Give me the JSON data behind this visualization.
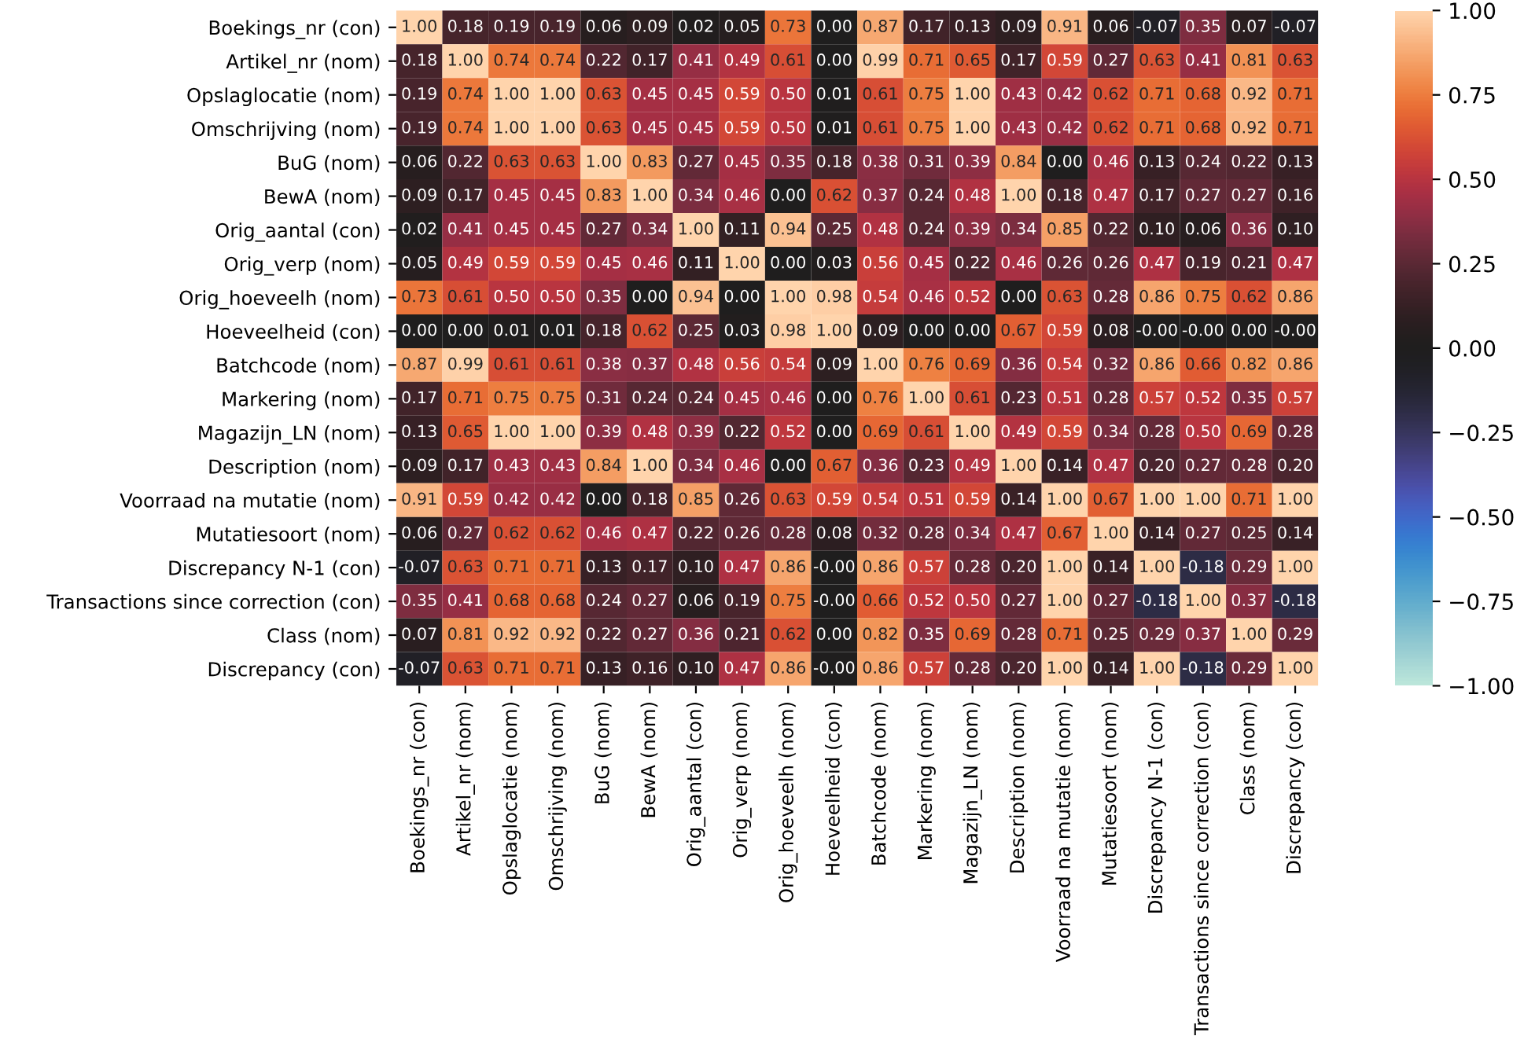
{
  "chart_data": {
    "type": "heatmap",
    "categories": [
      "Boekings_nr (con)",
      "Artikel_nr (nom)",
      "Opslaglocatie (nom)",
      "Omschrijving (nom)",
      "BuG (nom)",
      "BewA (nom)",
      "Orig_aantal (con)",
      "Orig_verp (nom)",
      "Orig_hoeveelh (nom)",
      "Hoeveelheid (con)",
      "Batchcode (nom)",
      "Markering (nom)",
      "Magazijn_LN (nom)",
      "Description (nom)",
      "Voorraad na mutatie (nom)",
      "Mutatiesoort (nom)",
      "Discrepancy N-1 (con)",
      "Transactions since correction (con)",
      "Class (nom)",
      "Discrepancy (con)"
    ],
    "y_categories": [
      "Boekings_nr (con)",
      "Artikel_nr (nom)",
      "Opslaglocatie (nom)",
      "Omschrijving (nom)",
      "BuG (nom)",
      "BewA (nom)",
      "Orig_aantal (con)",
      "Orig_verp (nom)",
      "Orig_hoeveelh (nom)",
      "Hoeveelheid (con)",
      "Batchcode (nom)",
      "Markering (nom)",
      "Magazijn_LN (nom)",
      "Description (nom)",
      "Voorraad na mutatie (nom)",
      "Mutatiesoort (nom)",
      "Discrepancy N-1 (con)",
      "Transactions since correction (con)",
      "Class (nom)",
      "Discrepancy (con)"
    ],
    "cells": [
      [
        1.0,
        0.18,
        0.19,
        0.19,
        0.06,
        0.09,
        0.02,
        0.05,
        0.73,
        0.0,
        0.87,
        0.17,
        0.13,
        0.09,
        0.91,
        0.06,
        -0.07,
        0.35,
        0.07,
        -0.07
      ],
      [
        0.18,
        1.0,
        0.74,
        0.74,
        0.22,
        0.17,
        0.41,
        0.49,
        0.61,
        0.0,
        0.99,
        0.71,
        0.65,
        0.17,
        0.59,
        0.27,
        0.63,
        0.41,
        0.81,
        0.63
      ],
      [
        0.19,
        0.74,
        1.0,
        1.0,
        0.63,
        0.45,
        0.45,
        0.59,
        0.5,
        0.01,
        0.61,
        0.75,
        1.0,
        0.43,
        0.42,
        0.62,
        0.71,
        0.68,
        0.92,
        0.71
      ],
      [
        0.19,
        0.74,
        1.0,
        1.0,
        0.63,
        0.45,
        0.45,
        0.59,
        0.5,
        0.01,
        0.61,
        0.75,
        1.0,
        0.43,
        0.42,
        0.62,
        0.71,
        0.68,
        0.92,
        0.71
      ],
      [
        0.06,
        0.22,
        0.63,
        0.63,
        1.0,
        0.83,
        0.27,
        0.45,
        0.35,
        0.18,
        0.38,
        0.31,
        0.39,
        0.84,
        0.0,
        0.46,
        0.13,
        0.24,
        0.22,
        0.13
      ],
      [
        0.09,
        0.17,
        0.45,
        0.45,
        0.83,
        1.0,
        0.34,
        0.46,
        0.0,
        0.62,
        0.37,
        0.24,
        0.48,
        1.0,
        0.18,
        0.47,
        0.17,
        0.27,
        0.27,
        0.16
      ],
      [
        0.02,
        0.41,
        0.45,
        0.45,
        0.27,
        0.34,
        1.0,
        0.11,
        0.94,
        0.25,
        0.48,
        0.24,
        0.39,
        0.34,
        0.85,
        0.22,
        0.1,
        0.06,
        0.36,
        0.1
      ],
      [
        0.05,
        0.49,
        0.59,
        0.59,
        0.45,
        0.46,
        0.11,
        1.0,
        0.0,
        0.03,
        0.56,
        0.45,
        0.22,
        0.46,
        0.26,
        0.26,
        0.47,
        0.19,
        0.21,
        0.47
      ],
      [
        0.73,
        0.61,
        0.5,
        0.5,
        0.35,
        0.0,
        0.94,
        0.0,
        1.0,
        0.98,
        0.54,
        0.46,
        0.52,
        0.0,
        0.63,
        0.28,
        0.86,
        0.75,
        0.62,
        0.86
      ],
      [
        0.0,
        0.0,
        0.01,
        0.01,
        0.18,
        0.62,
        0.25,
        0.03,
        0.98,
        1.0,
        0.09,
        0.0,
        0.0,
        0.67,
        0.59,
        0.08,
        -0.0,
        -0.0,
        0.0,
        -0.0
      ],
      [
        0.87,
        0.99,
        0.61,
        0.61,
        0.38,
        0.37,
        0.48,
        0.56,
        0.54,
        0.09,
        1.0,
        0.76,
        0.69,
        0.36,
        0.54,
        0.32,
        0.86,
        0.66,
        0.82,
        0.86
      ],
      [
        0.17,
        0.71,
        0.75,
        0.75,
        0.31,
        0.24,
        0.24,
        0.45,
        0.46,
        0.0,
        0.76,
        1.0,
        0.61,
        0.23,
        0.51,
        0.28,
        0.57,
        0.52,
        0.35,
        0.57
      ],
      [
        0.13,
        0.65,
        1.0,
        1.0,
        0.39,
        0.48,
        0.39,
        0.22,
        0.52,
        0.0,
        0.69,
        0.61,
        1.0,
        0.49,
        0.59,
        0.34,
        0.28,
        0.5,
        0.69,
        0.28
      ],
      [
        0.09,
        0.17,
        0.43,
        0.43,
        0.84,
        1.0,
        0.34,
        0.46,
        0.0,
        0.67,
        0.36,
        0.23,
        0.49,
        1.0,
        0.14,
        0.47,
        0.2,
        0.27,
        0.28,
        0.2
      ],
      [
        0.91,
        0.59,
        0.42,
        0.42,
        0.0,
        0.18,
        0.85,
        0.26,
        0.63,
        0.59,
        0.54,
        0.51,
        0.59,
        0.14,
        1.0,
        0.67,
        1.0,
        1.0,
        0.71,
        1.0
      ],
      [
        0.06,
        0.27,
        0.62,
        0.62,
        0.46,
        0.47,
        0.22,
        0.26,
        0.28,
        0.08,
        0.32,
        0.28,
        0.34,
        0.47,
        0.67,
        1.0,
        0.14,
        0.27,
        0.25,
        0.14
      ],
      [
        -0.07,
        0.63,
        0.71,
        0.71,
        0.13,
        0.17,
        0.1,
        0.47,
        0.86,
        -0.0,
        0.86,
        0.57,
        0.28,
        0.2,
        1.0,
        0.14,
        1.0,
        -0.18,
        0.29,
        1.0
      ],
      [
        0.35,
        0.41,
        0.68,
        0.68,
        0.24,
        0.27,
        0.06,
        0.19,
        0.75,
        -0.0,
        0.66,
        0.52,
        0.5,
        0.27,
        1.0,
        0.27,
        -0.18,
        1.0,
        0.37,
        -0.18
      ],
      [
        0.07,
        0.81,
        0.92,
        0.92,
        0.22,
        0.27,
        0.36,
        0.21,
        0.62,
        0.0,
        0.82,
        0.35,
        0.69,
        0.28,
        0.71,
        0.25,
        0.29,
        0.37,
        1.0,
        0.29
      ],
      [
        -0.07,
        0.63,
        0.71,
        0.71,
        0.13,
        0.16,
        0.1,
        0.47,
        0.86,
        -0.0,
        0.86,
        0.57,
        0.28,
        0.2,
        1.0,
        0.14,
        1.0,
        -0.18,
        0.29,
        1.0
      ]
    ],
    "cell_labels": [
      [
        "1.00",
        "0.18",
        "0.19",
        "0.19",
        "0.06",
        "0.09",
        "0.02",
        "0.05",
        "0.73",
        "0.00",
        "0.87",
        "0.17",
        "0.13",
        "0.09",
        "0.91",
        "0.06",
        "-0.07",
        "0.35",
        "0.07",
        "-0.07"
      ],
      [
        "0.18",
        "1.00",
        "0.74",
        "0.74",
        "0.22",
        "0.17",
        "0.41",
        "0.49",
        "0.61",
        "0.00",
        "0.99",
        "0.71",
        "0.65",
        "0.17",
        "0.59",
        "0.27",
        "0.63",
        "0.41",
        "0.81",
        "0.63"
      ],
      [
        "0.19",
        "0.74",
        "1.00",
        "1.00",
        "0.63",
        "0.45",
        "0.45",
        "0.59",
        "0.50",
        "0.01",
        "0.61",
        "0.75",
        "1.00",
        "0.43",
        "0.42",
        "0.62",
        "0.71",
        "0.68",
        "0.92",
        "0.71"
      ],
      [
        "0.19",
        "0.74",
        "1.00",
        "1.00",
        "0.63",
        "0.45",
        "0.45",
        "0.59",
        "0.50",
        "0.01",
        "0.61",
        "0.75",
        "1.00",
        "0.43",
        "0.42",
        "0.62",
        "0.71",
        "0.68",
        "0.92",
        "0.71"
      ],
      [
        "0.06",
        "0.22",
        "0.63",
        "0.63",
        "1.00",
        "0.83",
        "0.27",
        "0.45",
        "0.35",
        "0.18",
        "0.38",
        "0.31",
        "0.39",
        "0.84",
        "0.00",
        "0.46",
        "0.13",
        "0.24",
        "0.22",
        "0.13"
      ],
      [
        "0.09",
        "0.17",
        "0.45",
        "0.45",
        "0.83",
        "1.00",
        "0.34",
        "0.46",
        "0.00",
        "0.62",
        "0.37",
        "0.24",
        "0.48",
        "1.00",
        "0.18",
        "0.47",
        "0.17",
        "0.27",
        "0.27",
        "0.16"
      ],
      [
        "0.02",
        "0.41",
        "0.45",
        "0.45",
        "0.27",
        "0.34",
        "1.00",
        "0.11",
        "0.94",
        "0.25",
        "0.48",
        "0.24",
        "0.39",
        "0.34",
        "0.85",
        "0.22",
        "0.10",
        "0.06",
        "0.36",
        "0.10"
      ],
      [
        "0.05",
        "0.49",
        "0.59",
        "0.59",
        "0.45",
        "0.46",
        "0.11",
        "1.00",
        "0.00",
        "0.03",
        "0.56",
        "0.45",
        "0.22",
        "0.46",
        "0.26",
        "0.26",
        "0.47",
        "0.19",
        "0.21",
        "0.47"
      ],
      [
        "0.73",
        "0.61",
        "0.50",
        "0.50",
        "0.35",
        "0.00",
        "0.94",
        "0.00",
        "1.00",
        "0.98",
        "0.54",
        "0.46",
        "0.52",
        "0.00",
        "0.63",
        "0.28",
        "0.86",
        "0.75",
        "0.62",
        "0.86"
      ],
      [
        "0.00",
        "0.00",
        "0.01",
        "0.01",
        "0.18",
        "0.62",
        "0.25",
        "0.03",
        "0.98",
        "1.00",
        "0.09",
        "0.00",
        "0.00",
        "0.67",
        "0.59",
        "0.08",
        "-0.00",
        "-0.00",
        "0.00",
        "-0.00"
      ],
      [
        "0.87",
        "0.99",
        "0.61",
        "0.61",
        "0.38",
        "0.37",
        "0.48",
        "0.56",
        "0.54",
        "0.09",
        "1.00",
        "0.76",
        "0.69",
        "0.36",
        "0.54",
        "0.32",
        "0.86",
        "0.66",
        "0.82",
        "0.86"
      ],
      [
        "0.17",
        "0.71",
        "0.75",
        "0.75",
        "0.31",
        "0.24",
        "0.24",
        "0.45",
        "0.46",
        "0.00",
        "0.76",
        "1.00",
        "0.61",
        "0.23",
        "0.51",
        "0.28",
        "0.57",
        "0.52",
        "0.35",
        "0.57"
      ],
      [
        "0.13",
        "0.65",
        "1.00",
        "1.00",
        "0.39",
        "0.48",
        "0.39",
        "0.22",
        "0.52",
        "0.00",
        "0.69",
        "0.61",
        "1.00",
        "0.49",
        "0.59",
        "0.34",
        "0.28",
        "0.50",
        "0.69",
        "0.28"
      ],
      [
        "0.09",
        "0.17",
        "0.43",
        "0.43",
        "0.84",
        "1.00",
        "0.34",
        "0.46",
        "0.00",
        "0.67",
        "0.36",
        "0.23",
        "0.49",
        "1.00",
        "0.14",
        "0.47",
        "0.20",
        "0.27",
        "0.28",
        "0.20"
      ],
      [
        "0.91",
        "0.59",
        "0.42",
        "0.42",
        "0.00",
        "0.18",
        "0.85",
        "0.26",
        "0.63",
        "0.59",
        "0.54",
        "0.51",
        "0.59",
        "0.14",
        "1.00",
        "0.67",
        "1.00",
        "1.00",
        "0.71",
        "1.00"
      ],
      [
        "0.06",
        "0.27",
        "0.62",
        "0.62",
        "0.46",
        "0.47",
        "0.22",
        "0.26",
        "0.28",
        "0.08",
        "0.32",
        "0.28",
        "0.34",
        "0.47",
        "0.67",
        "1.00",
        "0.14",
        "0.27",
        "0.25",
        "0.14"
      ],
      [
        "-0.07",
        "0.63",
        "0.71",
        "0.71",
        "0.13",
        "0.17",
        "0.10",
        "0.47",
        "0.86",
        "-0.00",
        "0.86",
        "0.57",
        "0.28",
        "0.20",
        "1.00",
        "0.14",
        "1.00",
        "-0.18",
        "0.29",
        "1.00"
      ],
      [
        "0.35",
        "0.41",
        "0.68",
        "0.68",
        "0.24",
        "0.27",
        "0.06",
        "0.19",
        "0.75",
        "-0.00",
        "0.66",
        "0.52",
        "0.50",
        "0.27",
        "1.00",
        "0.27",
        "-0.18",
        "1.00",
        "0.37",
        "-0.18"
      ],
      [
        "0.07",
        "0.81",
        "0.92",
        "0.92",
        "0.22",
        "0.27",
        "0.36",
        "0.21",
        "0.62",
        "0.00",
        "0.82",
        "0.35",
        "0.69",
        "0.28",
        "0.71",
        "0.25",
        "0.29",
        "0.37",
        "1.00",
        "0.29"
      ],
      [
        "-0.07",
        "0.63",
        "0.71",
        "0.71",
        "0.13",
        "0.16",
        "0.10",
        "0.47",
        "0.86",
        "-0.00",
        "0.86",
        "0.57",
        "0.28",
        "0.20",
        "1.00",
        "0.14",
        "1.00",
        "-0.18",
        "0.29",
        "1.00"
      ]
    ],
    "clim": [
      -1,
      1
    ],
    "cticks": [
      {
        "value": -1,
        "label": "−1.00"
      },
      {
        "value": -0.75,
        "label": "−0.75"
      },
      {
        "value": -0.5,
        "label": "−0.50"
      },
      {
        "value": -0.25,
        "label": "−0.25"
      },
      {
        "value": 0,
        "label": "0.00"
      },
      {
        "value": 0.25,
        "label": "0.25"
      },
      {
        "value": 0.5,
        "label": "0.50"
      },
      {
        "value": 0.75,
        "label": "0.75"
      },
      {
        "value": 1,
        "label": "1.00"
      }
    ],
    "data_labels": true
  }
}
